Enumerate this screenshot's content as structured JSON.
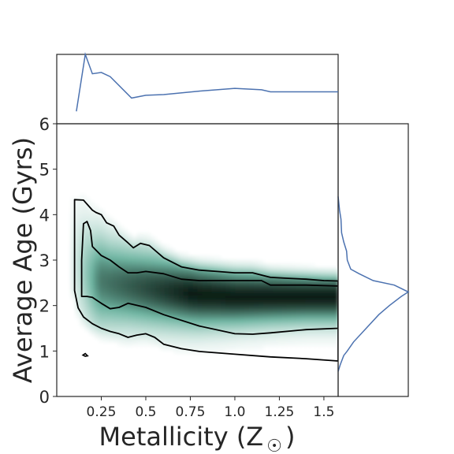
{
  "chart_data": {
    "type": "heatmap",
    "title": "",
    "xlabel": "Metallicity (Z",
    "xlabel_symbol": "☉",
    "xlabel_close": ")",
    "ylabel": "Average Age (Gyrs)",
    "xlim": [
      0.0,
      1.58
    ],
    "ylim": [
      0,
      6
    ],
    "xticks": [
      0.25,
      0.5,
      0.75,
      1.0,
      1.25,
      1.5
    ],
    "xtick_labels": [
      "0.25",
      "0.5",
      "0.75",
      "1.0",
      "1.25",
      "1.5"
    ],
    "yticks": [
      0,
      1,
      2,
      3,
      4,
      5,
      6
    ],
    "ytick_labels": [
      "0",
      "1",
      "2",
      "3",
      "4",
      "5",
      "6"
    ],
    "grid": false,
    "colors": {
      "density_low": "#ffffff",
      "density_mid": "#6fb5a2",
      "density_high": "#0e1f17",
      "contour": "#000000",
      "marginal_line": "#4c72b0",
      "axes": "#262626"
    },
    "density_ridge": {
      "x": [
        0.1,
        0.2,
        0.3,
        0.4,
        0.6,
        0.8,
        1.0,
        1.2,
        1.4,
        1.58
      ],
      "age": [
        2.9,
        2.6,
        2.5,
        2.45,
        2.35,
        2.25,
        2.2,
        2.2,
        2.2,
        2.2
      ],
      "spread": [
        0.9,
        0.75,
        0.65,
        0.6,
        0.55,
        0.5,
        0.45,
        0.42,
        0.4,
        0.4
      ]
    },
    "contour_outer": {
      "upper": {
        "x": [
          0.1,
          0.15,
          0.2,
          0.22,
          0.25,
          0.28,
          0.32,
          0.35,
          0.4,
          0.43,
          0.47,
          0.52,
          0.6,
          0.7,
          0.8,
          0.9,
          1.0,
          1.1,
          1.2,
          1.3,
          1.4,
          1.5,
          1.58
        ],
        "y": [
          4.33,
          4.32,
          4.1,
          4.05,
          4.0,
          3.82,
          3.75,
          3.55,
          3.38,
          3.27,
          3.37,
          3.32,
          3.05,
          2.85,
          2.78,
          2.75,
          2.72,
          2.72,
          2.62,
          2.6,
          2.58,
          2.55,
          2.54
        ]
      },
      "lower": {
        "x": [
          0.1,
          0.12,
          0.15,
          0.2,
          0.25,
          0.3,
          0.35,
          0.4,
          0.45,
          0.5,
          0.55,
          0.6,
          0.7,
          0.8,
          1.0,
          1.2,
          1.4,
          1.58
        ],
        "y": [
          2.33,
          1.95,
          1.75,
          1.6,
          1.5,
          1.43,
          1.38,
          1.3,
          1.35,
          1.38,
          1.3,
          1.15,
          1.05,
          0.99,
          0.93,
          0.87,
          0.83,
          0.78
        ]
      }
    },
    "contour_inner": {
      "upper": {
        "x": [
          0.14,
          0.15,
          0.17,
          0.19,
          0.2,
          0.25,
          0.3,
          0.35,
          0.4,
          0.45,
          0.5,
          0.6,
          0.7,
          0.8,
          1.0,
          1.15,
          1.2,
          1.3,
          1.4,
          1.58
        ],
        "y": [
          3.0,
          3.8,
          3.85,
          3.65,
          3.3,
          3.1,
          3.0,
          2.85,
          2.72,
          2.72,
          2.75,
          2.7,
          2.58,
          2.55,
          2.55,
          2.55,
          2.45,
          2.45,
          2.45,
          2.43
        ]
      },
      "lower": {
        "x": [
          0.14,
          0.17,
          0.2,
          0.25,
          0.3,
          0.35,
          0.4,
          0.5,
          0.6,
          0.8,
          1.0,
          1.1,
          1.2,
          1.4,
          1.58
        ],
        "y": [
          2.2,
          2.2,
          2.18,
          2.05,
          1.93,
          1.96,
          2.05,
          1.96,
          1.8,
          1.55,
          1.38,
          1.37,
          1.4,
          1.47,
          1.5
        ]
      },
      "islands": [
        {
          "x": 0.16,
          "y": 0.91
        }
      ]
    },
    "marginal_x": {
      "x": [
        0.11,
        0.16,
        0.2,
        0.25,
        0.3,
        0.42,
        0.5,
        0.6,
        0.8,
        1.0,
        1.15,
        1.2,
        1.4,
        1.58
      ],
      "density": [
        0.18,
        1.0,
        0.72,
        0.74,
        0.68,
        0.37,
        0.41,
        0.42,
        0.47,
        0.51,
        0.49,
        0.46,
        0.46,
        0.46
      ]
    },
    "marginal_y": {
      "age": [
        0.55,
        0.7,
        0.9,
        1.0,
        1.2,
        1.5,
        1.8,
        2.0,
        2.2,
        2.3,
        2.45,
        2.55,
        2.7,
        2.8,
        3.0,
        3.2,
        3.4,
        3.6,
        3.9,
        4.1,
        4.4
      ],
      "density": [
        0.0,
        0.03,
        0.08,
        0.13,
        0.22,
        0.4,
        0.58,
        0.73,
        0.9,
        1.0,
        0.8,
        0.5,
        0.3,
        0.18,
        0.13,
        0.12,
        0.08,
        0.05,
        0.04,
        0.02,
        0.0
      ]
    }
  }
}
